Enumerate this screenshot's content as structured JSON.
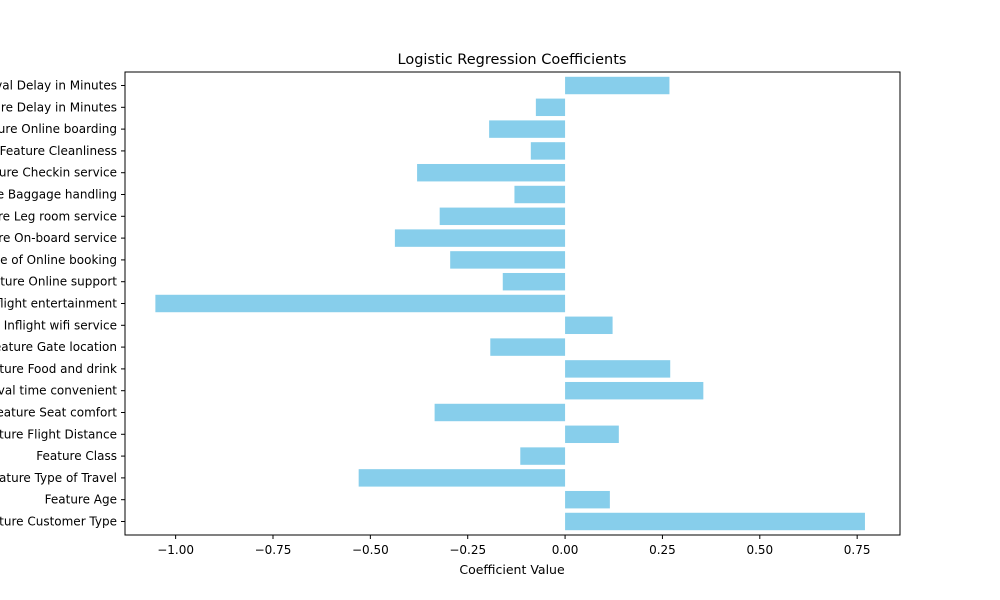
{
  "chart_data": {
    "type": "bar",
    "orientation": "horizontal",
    "title": "Logistic Regression Coefficients",
    "xlabel": "Coefficient Value",
    "ylabel": "",
    "xlim": [
      -1.13,
      0.86
    ],
    "xticks": [
      -1.0,
      -0.75,
      -0.5,
      -0.25,
      0.0,
      0.25,
      0.5,
      0.75
    ],
    "xtick_labels": [
      "−1.00",
      "−0.75",
      "−0.50",
      "−0.25",
      "0.00",
      "0.25",
      "0.50",
      "0.75"
    ],
    "bar_color": "#87ceeb",
    "grid": false,
    "categories": [
      "Feature Customer Type",
      "Feature Age",
      "Feature Type of Travel",
      "Feature Class",
      "Feature Flight Distance",
      "Feature Seat comfort",
      "Feature Departure/Arrival time convenient",
      "Feature Food and drink",
      "Feature Gate location",
      "Feature Inflight wifi service",
      "Feature Inflight entertainment",
      "Feature Online support",
      "Feature Ease of Online booking",
      "Feature On-board service",
      "Feature Leg room service",
      "Feature Baggage handling",
      "Feature Checkin service",
      "Feature Cleanliness",
      "Feature Online boarding",
      "Feature Departure Delay in Minutes",
      "Feature Arrival Delay in Minutes"
    ],
    "values": [
      0.77,
      0.115,
      -0.53,
      -0.115,
      0.138,
      -0.335,
      0.355,
      0.27,
      -0.192,
      0.122,
      -1.052,
      -0.16,
      -0.295,
      -0.437,
      -0.322,
      -0.13,
      -0.38,
      -0.088,
      -0.195,
      -0.075,
      0.268
    ]
  }
}
